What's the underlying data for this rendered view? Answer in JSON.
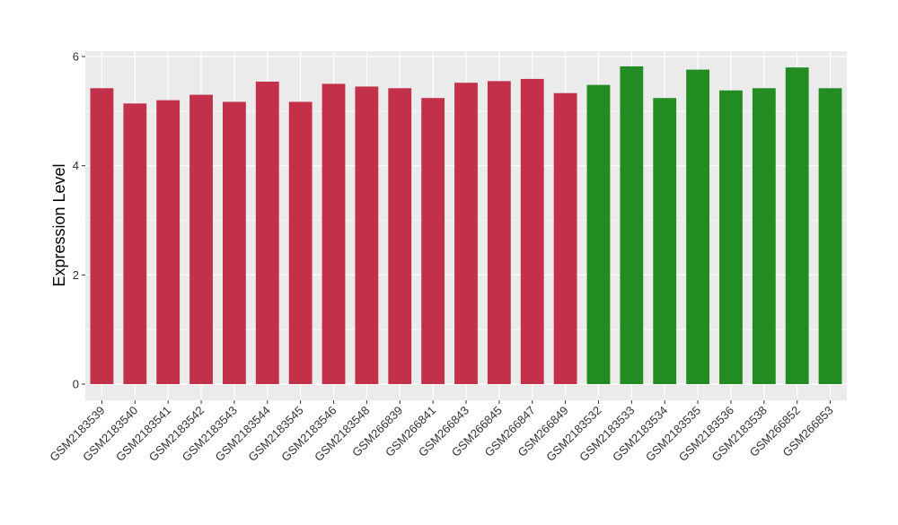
{
  "chart_data": {
    "type": "bar",
    "title": "",
    "xlabel": "",
    "ylabel": "Expression Level",
    "ylim": [
      0,
      6.2
    ],
    "yticks": [
      0,
      2,
      4,
      6
    ],
    "grid": true,
    "categories": [
      "GSM2183539",
      "GSM2183540",
      "GSM2183541",
      "GSM2183542",
      "GSM2183543",
      "GSM2183544",
      "GSM2183545",
      "GSM2183546",
      "GSM2183548",
      "GSM266839",
      "GSM266841",
      "GSM266843",
      "GSM266845",
      "GSM266847",
      "GSM266849",
      "GSM2183532",
      "GSM2183533",
      "GSM2183534",
      "GSM2183535",
      "GSM2183536",
      "GSM2183538",
      "GSM266852",
      "GSM266853"
    ],
    "values": [
      5.42,
      5.14,
      5.2,
      5.3,
      5.17,
      5.54,
      5.17,
      5.5,
      5.45,
      5.42,
      5.24,
      5.52,
      5.55,
      5.59,
      5.33,
      5.48,
      5.82,
      5.24,
      5.76,
      5.38,
      5.42,
      5.8,
      5.42
    ],
    "groups": [
      "a",
      "a",
      "a",
      "a",
      "a",
      "a",
      "a",
      "a",
      "a",
      "a",
      "a",
      "a",
      "a",
      "a",
      "a",
      "b",
      "b",
      "b",
      "b",
      "b",
      "b",
      "b",
      "b"
    ],
    "group_colors": {
      "a": "#c3304a",
      "b": "#228b22"
    },
    "panel_background": "#ebebeb",
    "grid_color": "#ffffff"
  }
}
